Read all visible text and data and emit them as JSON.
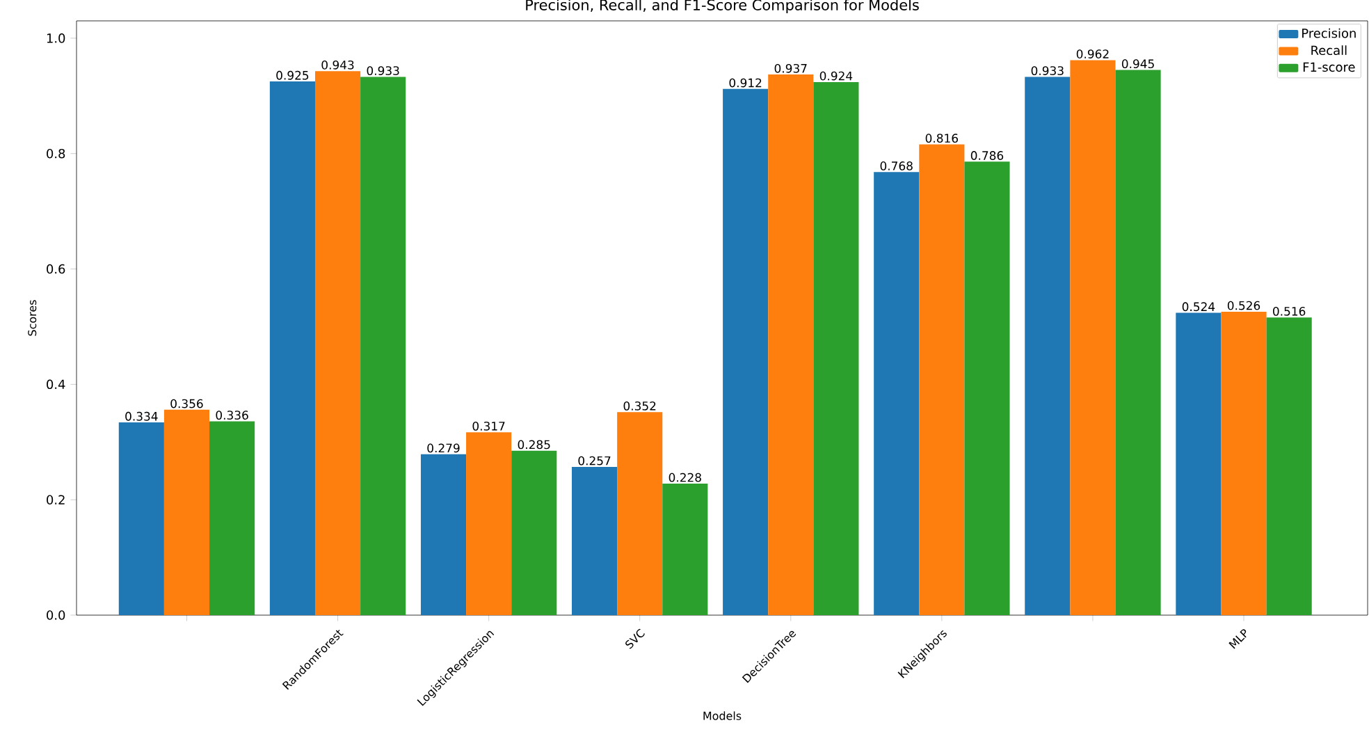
{
  "chart_data": {
    "type": "bar",
    "title": "Precision, Recall, and F1-Score Comparison for Models",
    "xlabel": "Models",
    "ylabel": "Scores",
    "categories": [
      null,
      "RandomForest",
      "LogisticRegression",
      "SVC",
      "DecisionTree",
      "KNeighbors",
      null,
      "MLP"
    ],
    "series": [
      {
        "name": "Precision",
        "color": "#1f77b4",
        "values": [
          0.334,
          0.925,
          0.279,
          0.257,
          0.912,
          0.768,
          0.933,
          0.524
        ]
      },
      {
        "name": "Recall",
        "color": "#ff7f0e",
        "values": [
          0.356,
          0.943,
          0.317,
          0.352,
          0.937,
          0.816,
          0.962,
          0.526
        ]
      },
      {
        "name": "F1-score",
        "color": "#2ca02c",
        "values": [
          0.336,
          0.933,
          0.285,
          0.228,
          0.924,
          0.786,
          0.945,
          0.516
        ]
      }
    ],
    "ylim": [
      0,
      1.03
    ],
    "yticks": [
      {
        "value": 0,
        "label": "0.0"
      },
      {
        "value": 0.2,
        "label": "0.2"
      },
      {
        "value": 0.4,
        "label": "0.4"
      },
      {
        "value": 0.6,
        "label": "0.6"
      },
      {
        "value": 0.8,
        "label": "0.8"
      },
      {
        "value": 1,
        "label": "1.0"
      }
    ],
    "data_labels": true,
    "legend": "top right"
  }
}
